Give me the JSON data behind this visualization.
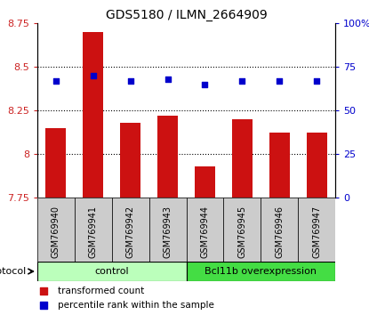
{
  "title": "GDS5180 / ILMN_2664909",
  "samples": [
    "GSM769940",
    "GSM769941",
    "GSM769942",
    "GSM769943",
    "GSM769944",
    "GSM769945",
    "GSM769946",
    "GSM769947"
  ],
  "bar_values": [
    8.15,
    8.7,
    8.18,
    8.22,
    7.93,
    8.2,
    8.12,
    8.12
  ],
  "dot_values": [
    67,
    70,
    67,
    68,
    65,
    67,
    67,
    67
  ],
  "ylim_left": [
    7.75,
    8.75
  ],
  "ylim_right": [
    0,
    100
  ],
  "yticks_left": [
    7.75,
    8.0,
    8.25,
    8.5,
    8.75
  ],
  "ytick_labels_left": [
    "7.75",
    "8",
    "8.25",
    "8.5",
    "8.75"
  ],
  "yticks_right": [
    0,
    25,
    50,
    75,
    100
  ],
  "ytick_labels_right": [
    "0",
    "25",
    "50",
    "75",
    "100%"
  ],
  "hlines": [
    8.0,
    8.25,
    8.5
  ],
  "bar_color": "#cc1111",
  "dot_color": "#0000cc",
  "bar_width": 0.55,
  "groups": [
    {
      "label": "control",
      "start": 0,
      "end": 4,
      "color": "#bbffbb"
    },
    {
      "label": "Bcl11b overexpression",
      "start": 4,
      "end": 8,
      "color": "#44dd44"
    }
  ],
  "protocol_label": "protocol",
  "legend_bar_label": "transformed count",
  "legend_dot_label": "percentile rank within the sample",
  "tick_label_color_left": "#cc2222",
  "tick_label_color_right": "#0000cc",
  "sample_box_color": "#cccccc"
}
